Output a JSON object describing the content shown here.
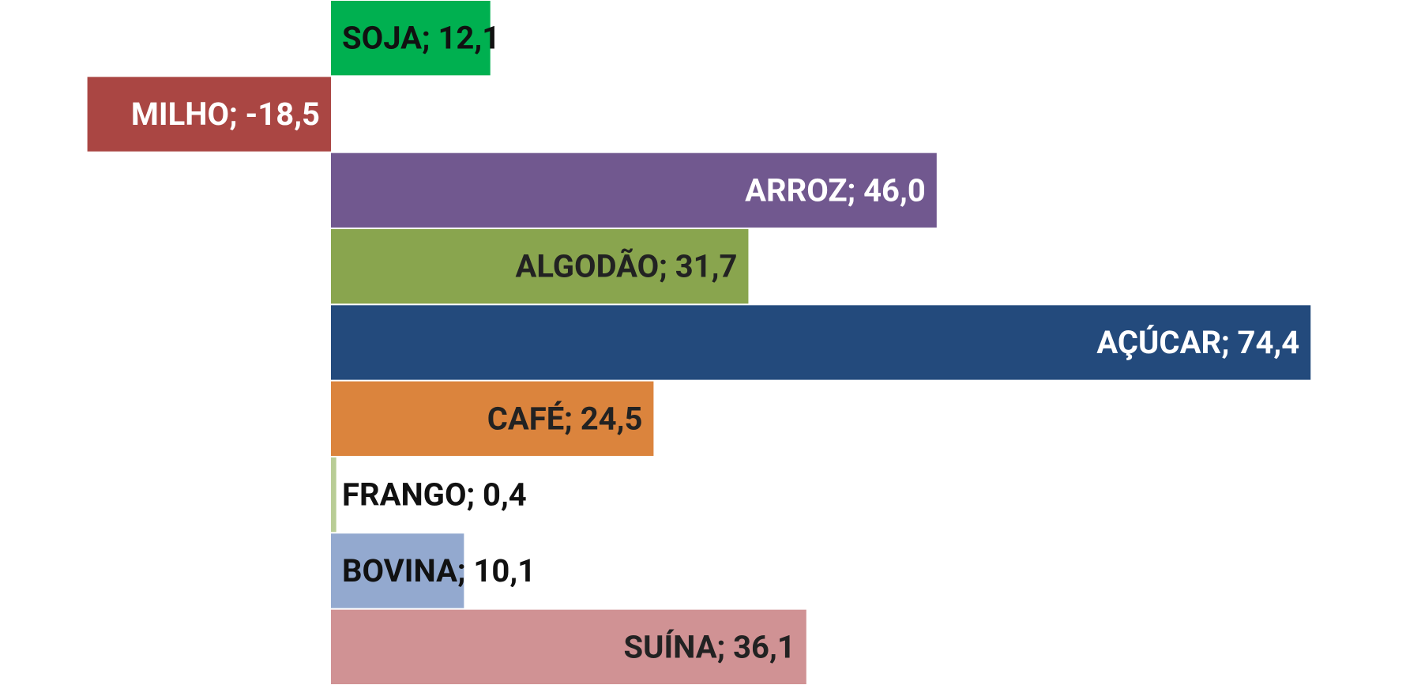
{
  "chart_data": {
    "type": "hbar",
    "values": [
      12.1,
      -18.5,
      46.0,
      31.7,
      74.4,
      24.5,
      0.4,
      10.1,
      36.1
    ],
    "value_labels": [
      "SOJA; 12,1",
      "MILHO; -18,5",
      "ARROZ; 46,0",
      "ALGODÃO; 31,7",
      "AÇÚCAR; 74,4",
      "CAFÉ; 24,5",
      "FRANGO; 0,4",
      "BOVINA; 10,1",
      "SUÍNA; 36,1"
    ],
    "colors": [
      "#00b050",
      "#aa4643",
      "#71588f",
      "#89a54e",
      "#234a7c",
      "#db843d",
      "#b9cd96",
      "#93a9cf",
      "#d09294"
    ]
  }
}
